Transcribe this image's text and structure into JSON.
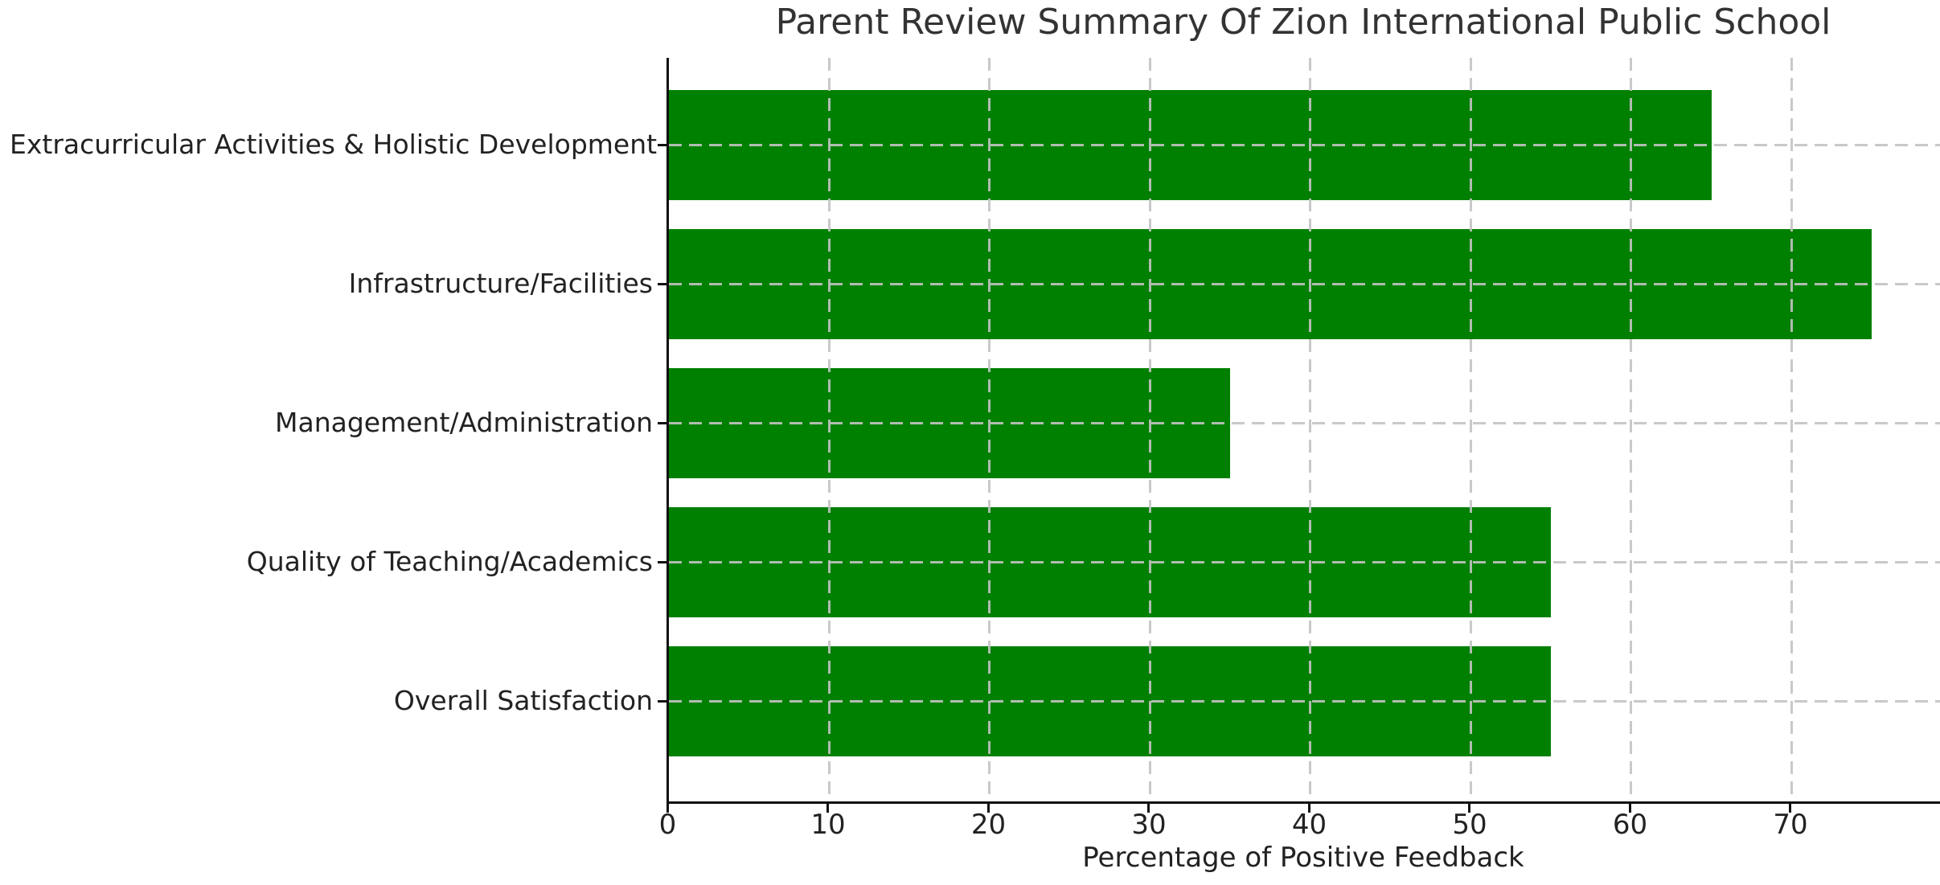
{
  "chart_data": {
    "type": "bar",
    "orientation": "horizontal",
    "title": "Parent Review Summary Of Zion International Public School",
    "xlabel": "Percentage of Positive Feedback",
    "ylabel": "",
    "categories": [
      "Extracurricular Activities & Holistic Development",
      "Infrastructure/Facilities",
      "Management/Administration",
      "Quality of Teaching/Academics",
      "Overall Satisfaction"
    ],
    "values": [
      65,
      75,
      35,
      55,
      55
    ],
    "xticks": [
      0,
      10,
      20,
      30,
      40,
      50,
      60,
      70
    ],
    "xlim": [
      0,
      79.4
    ],
    "grid": "dashed, drawn above bars",
    "legend": "none",
    "bar_color": "#008000",
    "grid_color": "#c3c3c3",
    "spine_color": "#111111",
    "text_color": "#222222"
  }
}
